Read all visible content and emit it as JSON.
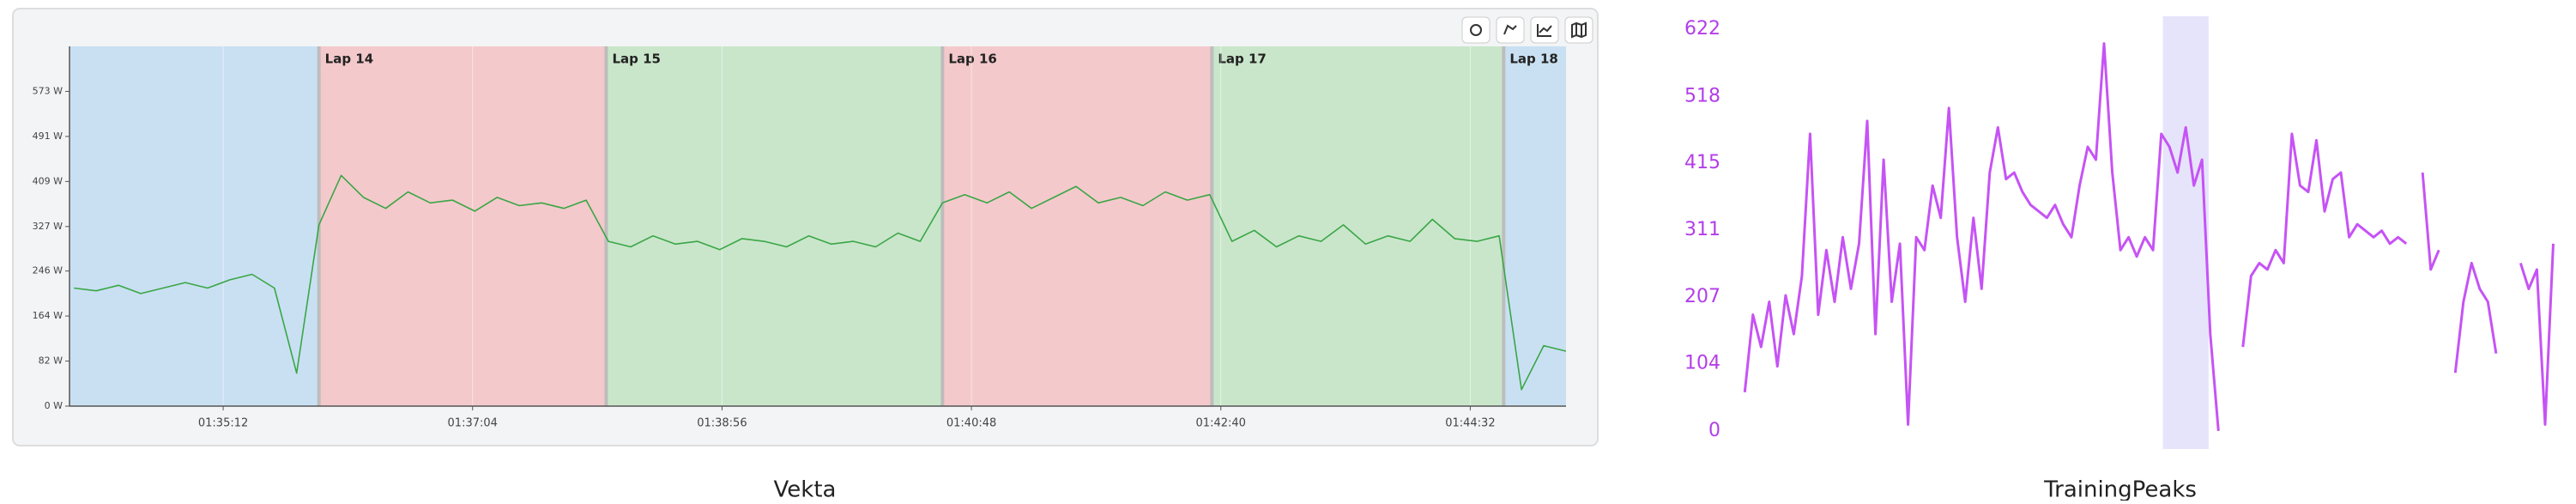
{
  "chart_data": [
    {
      "type": "line",
      "caption": "Vekta",
      "xlim": [
        5643,
        6315
      ],
      "ylim": [
        0,
        655
      ],
      "xticks": [
        {
          "value": 5712,
          "label": "01:35:12"
        },
        {
          "value": 5824,
          "label": "01:37:04"
        },
        {
          "value": 5936,
          "label": "01:38:56"
        },
        {
          "value": 6048,
          "label": "01:40:48"
        },
        {
          "value": 6160,
          "label": "01:42:40"
        },
        {
          "value": 6272,
          "label": "01:44:32"
        }
      ],
      "yticks": [
        {
          "value": 0,
          "label": "0 W"
        },
        {
          "value": 82,
          "label": "82 W"
        },
        {
          "value": 164,
          "label": "164 W"
        },
        {
          "value": 246,
          "label": "246 W"
        },
        {
          "value": 327,
          "label": "327 W"
        },
        {
          "value": 409,
          "label": "409 W"
        },
        {
          "value": 491,
          "label": "491 W"
        },
        {
          "value": 573,
          "label": "573 W"
        }
      ],
      "grid": true,
      "bands": [
        {
          "name": null,
          "start": 5643,
          "end": 5755,
          "color": "#c9e0f2"
        },
        {
          "name": "Lap 14",
          "start": 5755,
          "end": 5884,
          "color": "#f4c9cc"
        },
        {
          "name": "Lap 15",
          "start": 5884,
          "end": 6035,
          "color": "#c9e6cb"
        },
        {
          "name": "Lap 16",
          "start": 6035,
          "end": 6156,
          "color": "#f4c9cc"
        },
        {
          "name": "Lap 17",
          "start": 6156,
          "end": 6287,
          "color": "#c9e6cb"
        },
        {
          "name": "Lap 18",
          "start": 6287,
          "end": 6315,
          "color": "#c9e0f2"
        }
      ],
      "x": [
        5645,
        5655,
        5665,
        5675,
        5685,
        5695,
        5705,
        5715,
        5725,
        5735,
        5745,
        5755,
        5765,
        5775,
        5785,
        5795,
        5805,
        5815,
        5825,
        5835,
        5845,
        5855,
        5865,
        5875,
        5885,
        5895,
        5905,
        5915,
        5925,
        5935,
        5945,
        5955,
        5965,
        5975,
        5985,
        5995,
        6005,
        6015,
        6025,
        6035,
        6045,
        6055,
        6065,
        6075,
        6085,
        6095,
        6105,
        6115,
        6125,
        6135,
        6145,
        6155,
        6165,
        6175,
        6185,
        6195,
        6205,
        6215,
        6225,
        6235,
        6245,
        6255,
        6265,
        6275,
        6285,
        6295,
        6305,
        6315
      ],
      "series": [
        {
          "color": "#3aa645",
          "values": [
            215,
            210,
            220,
            205,
            215,
            225,
            215,
            230,
            240,
            215,
            60,
            330,
            420,
            380,
            360,
            390,
            370,
            375,
            355,
            380,
            365,
            370,
            360,
            375,
            300,
            290,
            310,
            295,
            300,
            285,
            305,
            300,
            290,
            310,
            295,
            300,
            290,
            315,
            300,
            370,
            385,
            370,
            390,
            360,
            380,
            400,
            370,
            380,
            365,
            390,
            375,
            385,
            300,
            320,
            290,
            310,
            300,
            330,
            295,
            310,
            300,
            340,
            305,
            300,
            310,
            30,
            110,
            100
          ]
        }
      ]
    },
    {
      "type": "line",
      "caption": "TrainingPeaks",
      "xlim": [
        -1.5,
        100
      ],
      "ylim": [
        -28,
        642
      ],
      "yticks": [
        0,
        104,
        207,
        311,
        415,
        518,
        622
      ],
      "tick_color": "#b33de8",
      "bands": [
        {
          "name": null,
          "start": 51.2,
          "end": 56.8,
          "color": "#e6e4fb"
        }
      ],
      "x": [
        0,
        1,
        2,
        3,
        4,
        5,
        6,
        7,
        8,
        9,
        10,
        11,
        12,
        13,
        14,
        15,
        16,
        17,
        18,
        19,
        20,
        21,
        22,
        23,
        24,
        25,
        26,
        27,
        28,
        29,
        30,
        31,
        32,
        33,
        34,
        35,
        36,
        37,
        38,
        39,
        40,
        41,
        42,
        43,
        44,
        45,
        46,
        47,
        48,
        49,
        50,
        51,
        52,
        53,
        54,
        55,
        56,
        57,
        58,
        59,
        60,
        61,
        62,
        63,
        64,
        65,
        66,
        67,
        68,
        69,
        70,
        71,
        72,
        73,
        74,
        75,
        76,
        77,
        78,
        79,
        80,
        81,
        82,
        83,
        84,
        85,
        86,
        87,
        88,
        89,
        90,
        91,
        92,
        93,
        94,
        95,
        96,
        97,
        98,
        99
      ],
      "series": [
        {
          "color": "#c653f5",
          "values": [
            60,
            180,
            130,
            200,
            100,
            210,
            150,
            240,
            460,
            180,
            280,
            200,
            300,
            220,
            290,
            480,
            150,
            420,
            200,
            290,
            10,
            300,
            280,
            380,
            330,
            500,
            300,
            200,
            330,
            220,
            400,
            470,
            390,
            400,
            370,
            350,
            340,
            330,
            350,
            320,
            300,
            380,
            440,
            420,
            600,
            400,
            280,
            300,
            270,
            300,
            280,
            460,
            440,
            400,
            470,
            380,
            420,
            150,
            0,
            null,
            null,
            130,
            240,
            260,
            250,
            280,
            260,
            460,
            380,
            370,
            450,
            340,
            390,
            400,
            300,
            320,
            310,
            300,
            310,
            290,
            300,
            290,
            null,
            400,
            250,
            280,
            null,
            90,
            200,
            260,
            220,
            200,
            120,
            null,
            null,
            260,
            220,
            250,
            10,
            290
          ]
        }
      ]
    }
  ]
}
